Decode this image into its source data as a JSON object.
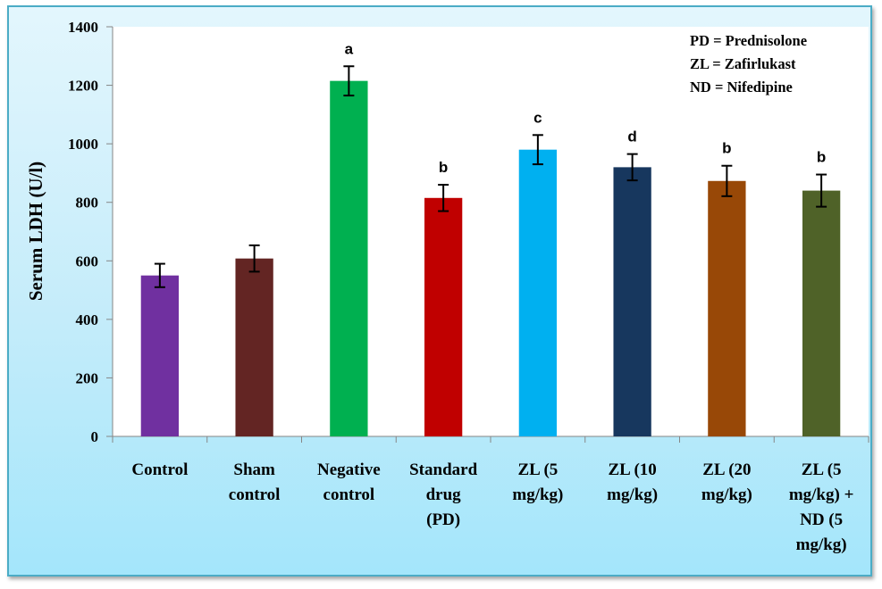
{
  "chart_data": {
    "type": "bar",
    "title": "",
    "xlabel": "",
    "ylabel": "Serum LDH (U/l)",
    "ylim": [
      0,
      1400
    ],
    "yticks": [
      0,
      200,
      400,
      600,
      800,
      1000,
      1200,
      1400
    ],
    "grid": false,
    "categories": [
      [
        "Control"
      ],
      [
        "Sham",
        "control"
      ],
      [
        "Negative",
        "control"
      ],
      [
        "Standard",
        "drug",
        "(PD)"
      ],
      [
        "ZL (5",
        "mg/kg)"
      ],
      [
        "ZL (10",
        "mg/kg)"
      ],
      [
        "ZL (20",
        "mg/kg)"
      ],
      [
        "ZL (5",
        "mg/kg) +",
        "ND (5",
        "mg/kg)"
      ]
    ],
    "values": [
      550,
      608,
      1215,
      815,
      980,
      920,
      873,
      840
    ],
    "errors": [
      40,
      45,
      50,
      45,
      50,
      45,
      52,
      55
    ],
    "significance": [
      "",
      "",
      "a",
      "b",
      "c",
      "d",
      "b",
      "b"
    ],
    "colors": [
      "#7030a0",
      "#632523",
      "#00b050",
      "#c00000",
      "#00b0f0",
      "#17375e",
      "#984807",
      "#4f6228"
    ],
    "annotations": [
      "PD = Prednisolone",
      "ZL = Zafirlukast",
      "ND = Nifedipine"
    ],
    "legend_position": "top-right"
  }
}
